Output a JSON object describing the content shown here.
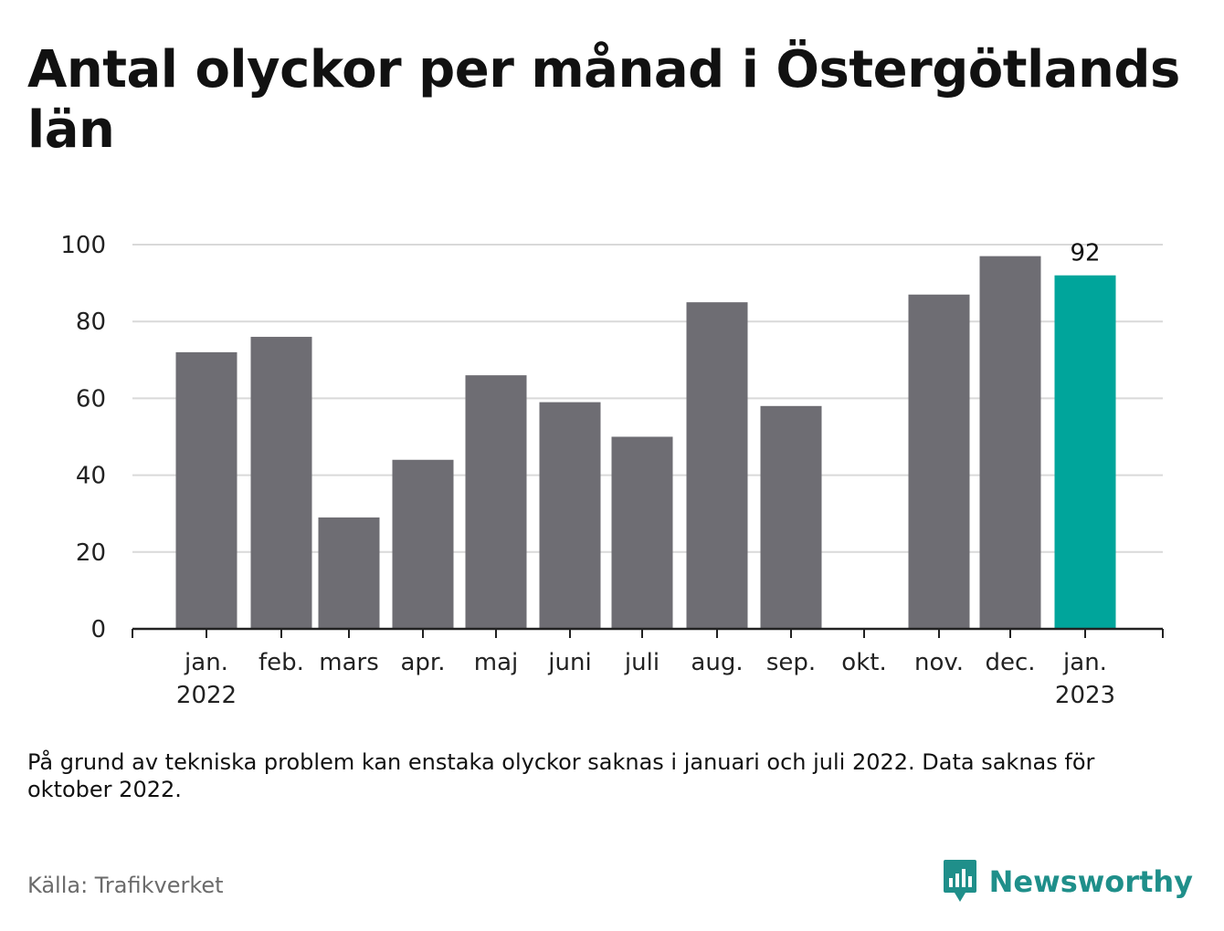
{
  "title": "Antal olyckor per månad i Östergötlands län",
  "note": "På grund av tekniska problem kan enstaka olyckor saknas i januari och juli 2022. Data saknas för oktober 2022.",
  "source": "Källa: Trafikverket",
  "brand": "Newsworthy",
  "colors": {
    "bar": "#6e6d73",
    "highlight": "#00a59b",
    "grid": "#d9d9d9",
    "axis": "#222222",
    "brand": "#1f8f8a"
  },
  "chart_data": {
    "type": "bar",
    "categories": [
      "jan.",
      "feb.",
      "mars",
      "apr.",
      "maj",
      "juni",
      "juli",
      "aug.",
      "sep.",
      "okt.",
      "nov.",
      "dec.",
      "jan."
    ],
    "year_labels": [
      "2022",
      "",
      "",
      "",
      "",
      "",
      "",
      "",
      "",
      "",
      "",
      "",
      "2023"
    ],
    "values": [
      72,
      76,
      29,
      44,
      66,
      59,
      50,
      85,
      58,
      null,
      87,
      97,
      92
    ],
    "highlight_index": 12,
    "data_labels": [
      "",
      "",
      "",
      "",
      "",
      "",
      "",
      "",
      "",
      "",
      "",
      "",
      "92"
    ],
    "yticks": [
      0,
      20,
      40,
      60,
      80,
      100
    ],
    "ylim": [
      0,
      100
    ],
    "grid": true,
    "title": "Antal olyckor per månad i Östergötlands län"
  }
}
